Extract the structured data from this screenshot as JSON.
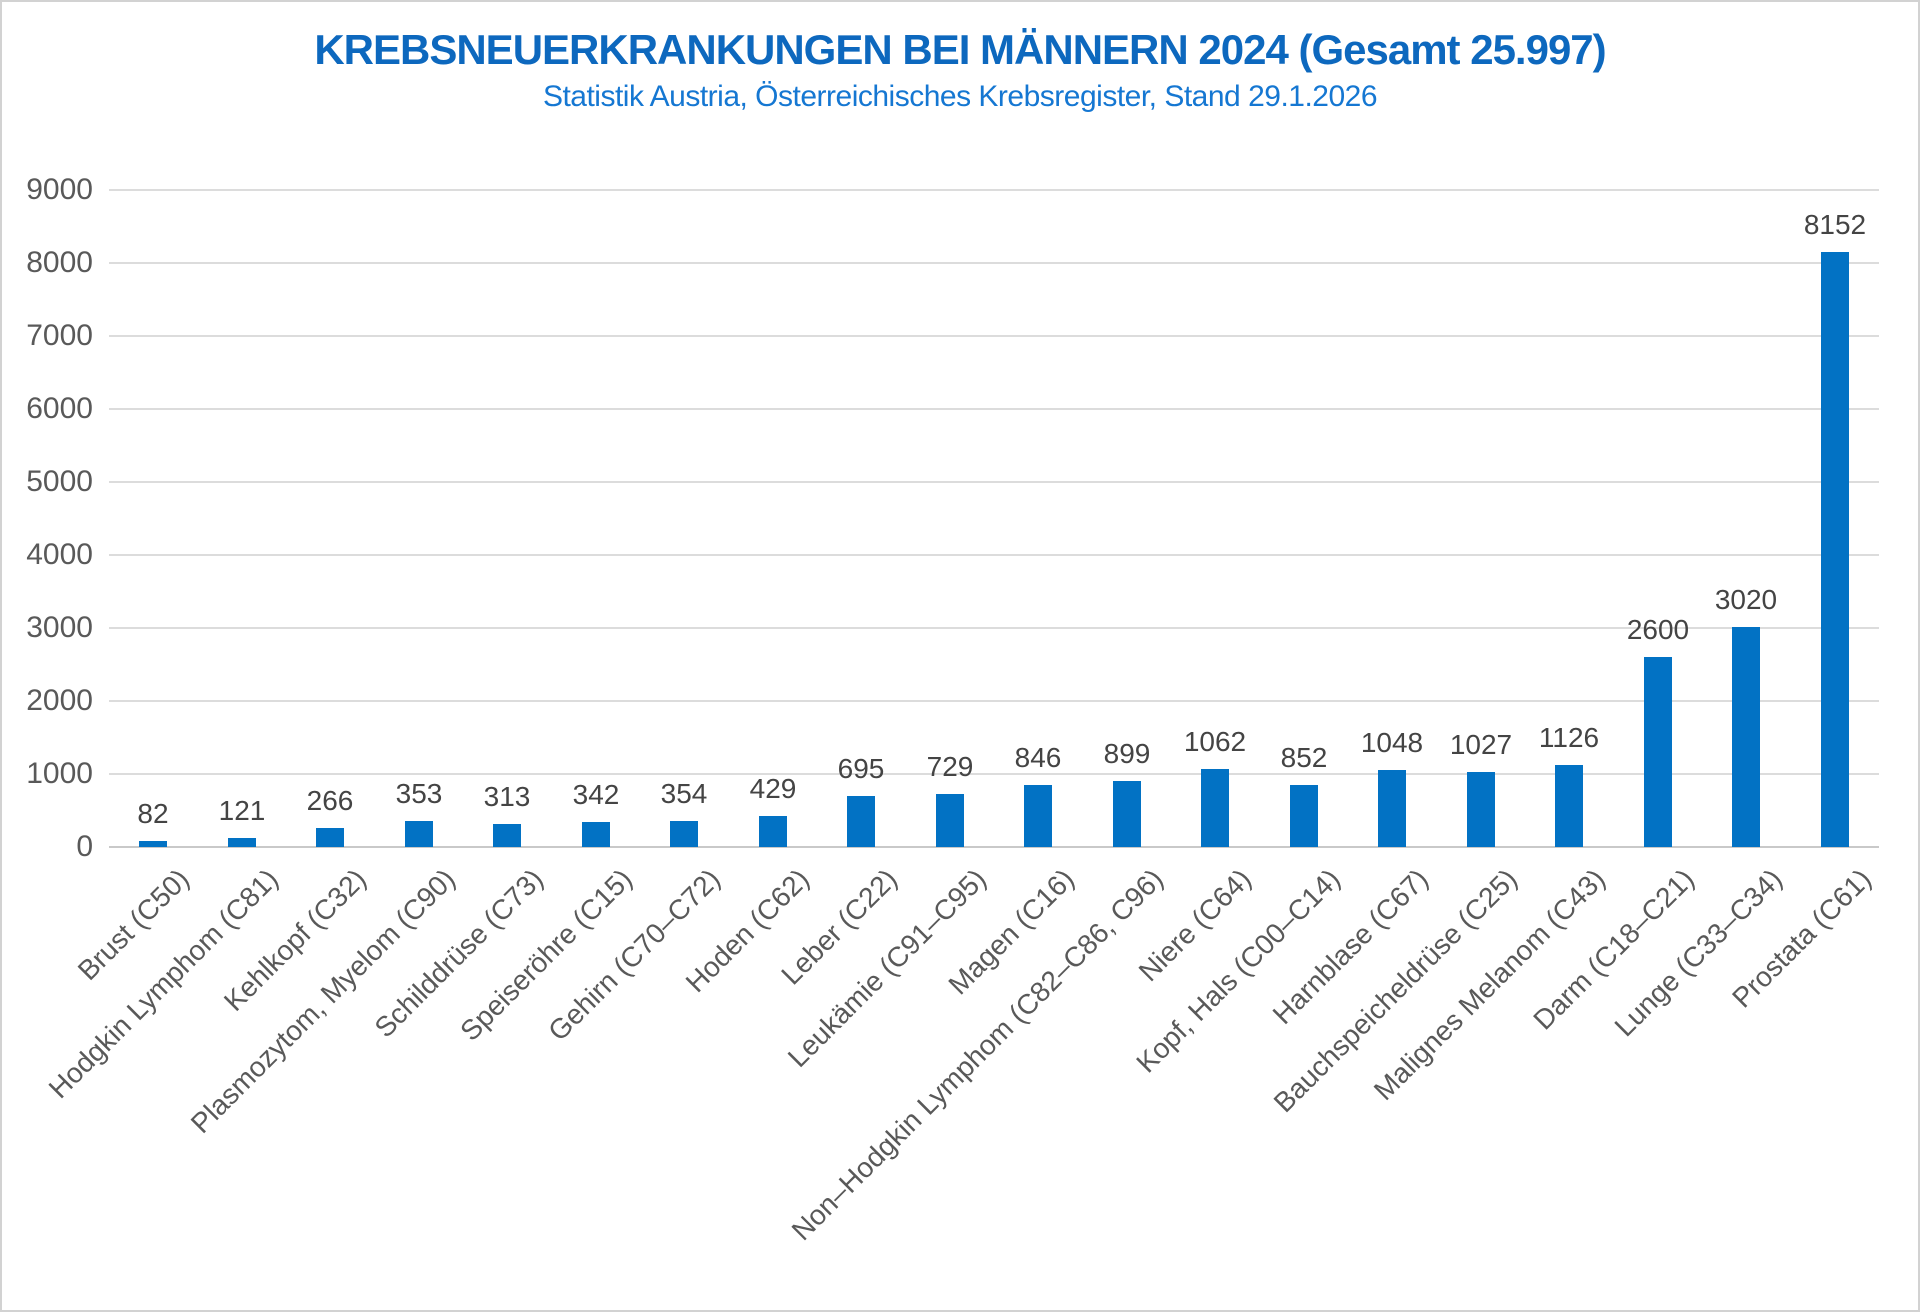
{
  "page": {
    "background": "#FFFFFF",
    "border_color": "#D2D2D2"
  },
  "header": {
    "title": "KREBSNEUERKRANKUNGEN BEI MÄNNERN 2024 (Gesamt 25.997)",
    "subtitle": "Statistik Austria, Österreichisches Krebsregister, Stand 29.1.2026",
    "title_color": "#0D68BE",
    "subtitle_color": "#1577D2"
  },
  "chart_data": {
    "type": "bar",
    "title": "KREBSNEUERKRANKUNGEN BEI MÄNNERN 2024 (Gesamt 25.997)",
    "subtitle": "Statistik Austria, Österreichisches Krebsregister, Stand 29.1.2026",
    "total_shown_in_title": "25.997",
    "categories": [
      "Brust (C50)",
      "Hodgkin Lymphom (C81)",
      "Kehlkopf (C32)",
      "Plasmozytom, Myelom (C90)",
      "Schilddrüse (C73)",
      "Speiseröhre (C15)",
      "Gehirn (C70–C72)",
      "Hoden (C62)",
      "Leber (C22)",
      "Leukämie (C91–C95)",
      "Magen (C16)",
      "Non–Hodgkin Lymphom (C82–C86, C96)",
      "Niere (C64)",
      "Kopf, Hals (C00–C14)",
      "Harnblase (C67)",
      "Bauchspeicheldrüse (C25)",
      "Malignes Melanom (C43)",
      "Darm (C18–C21)",
      "Lunge (C33–C34)",
      "Prostata (C61)"
    ],
    "values": [
      82,
      121,
      266,
      353,
      313,
      342,
      354,
      429,
      695,
      729,
      846,
      899,
      1062,
      852,
      1048,
      1027,
      1126,
      2600,
      3020,
      8152
    ],
    "xlabel": "",
    "ylabel": "",
    "ylim": [
      0,
      9000
    ],
    "ytick_step": 1000,
    "yticks": [
      0,
      1000,
      2000,
      3000,
      4000,
      5000,
      6000,
      7000,
      8000,
      9000
    ],
    "grid": "horizontal",
    "legend": "none",
    "data_labels": true,
    "category_rotation_deg": 45,
    "bar_color": "#0272C4",
    "value_label_color": "#444444",
    "axis_text_color": "#595959",
    "gridline_color": "#DCDCDC",
    "baseline_color": "#C9C9C9"
  }
}
